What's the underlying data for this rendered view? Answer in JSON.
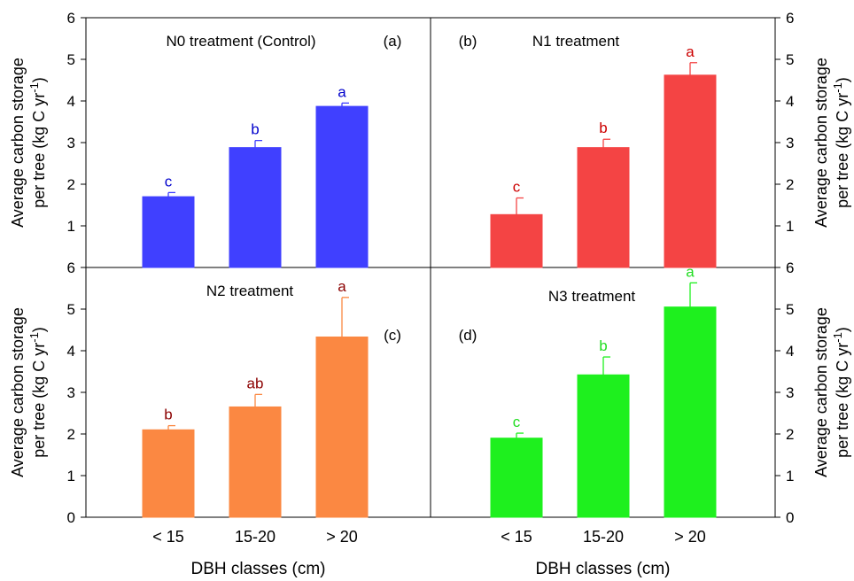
{
  "chart_data": [
    {
      "panel": "a",
      "type": "bar",
      "title": "N0 treatment (Control)",
      "panel_label": "(a)",
      "categories": [
        "< 15",
        "15-20",
        "> 20"
      ],
      "values": [
        1.7,
        2.88,
        3.87
      ],
      "errors": [
        0.1,
        0.17,
        0.08
      ],
      "letters": [
        "c",
        "b",
        "a"
      ],
      "color": "#4040ff",
      "letter_color": "#0000cc",
      "ylim": [
        0,
        6
      ],
      "yticks": [
        "1",
        "2",
        "3",
        "4",
        "5",
        "6"
      ],
      "ylabel_line1": "Average carbon storage",
      "ylabel_line2": "per tree (kg C yr",
      "ylabel_sup": "-1",
      "ylabel_end": ")"
    },
    {
      "panel": "b",
      "type": "bar",
      "title": "N1 treatment",
      "panel_label": "(b)",
      "categories": [
        "< 15",
        "15-20",
        "> 20"
      ],
      "values": [
        1.27,
        2.88,
        4.62
      ],
      "errors": [
        0.4,
        0.2,
        0.3
      ],
      "letters": [
        "c",
        "b",
        "a"
      ],
      "color": "#f44444",
      "letter_color": "#cc0000",
      "ylim": [
        0,
        6
      ],
      "yticks": [
        "1",
        "2",
        "3",
        "4",
        "5",
        "6"
      ],
      "ylabel_line1": "Average carbon storage",
      "ylabel_line2": "per tree (kg C yr",
      "ylabel_sup": "-1",
      "ylabel_end": ")"
    },
    {
      "panel": "c",
      "type": "bar",
      "title": "N2 treatment",
      "panel_label": "(c)",
      "categories": [
        "< 15",
        "15-20",
        "> 20"
      ],
      "values": [
        2.1,
        2.65,
        4.33
      ],
      "errors": [
        0.1,
        0.3,
        0.95
      ],
      "letters": [
        "b",
        "ab",
        "a"
      ],
      "color": "#fb8842",
      "letter_color": "#8b0000",
      "ylim": [
        0,
        6
      ],
      "yticks": [
        "0",
        "1",
        "2",
        "3",
        "4",
        "5",
        "6"
      ],
      "ylabel_line1": "Average carbon storage",
      "ylabel_line2": "per tree (kg C yr",
      "ylabel_sup": "-1",
      "ylabel_end": ")",
      "xlabel": "DBH classes (cm)"
    },
    {
      "panel": "d",
      "type": "bar",
      "title": "N3 treatment",
      "panel_label": "(d)",
      "categories": [
        "< 15",
        "15-20",
        "> 20"
      ],
      "values": [
        1.9,
        3.42,
        5.05
      ],
      "errors": [
        0.12,
        0.43,
        0.58
      ],
      "letters": [
        "c",
        "b",
        "a"
      ],
      "color": "#1ef01e",
      "letter_color": "#22dd22",
      "ylim": [
        0,
        6
      ],
      "yticks": [
        "0",
        "1",
        "2",
        "3",
        "4",
        "5",
        "6"
      ],
      "ylabel_line1": "Average carbon storage",
      "ylabel_line2": "per tree (kg C yr",
      "ylabel_sup": "-1",
      "ylabel_end": ")",
      "xlabel": "DBH classes (cm)"
    }
  ]
}
